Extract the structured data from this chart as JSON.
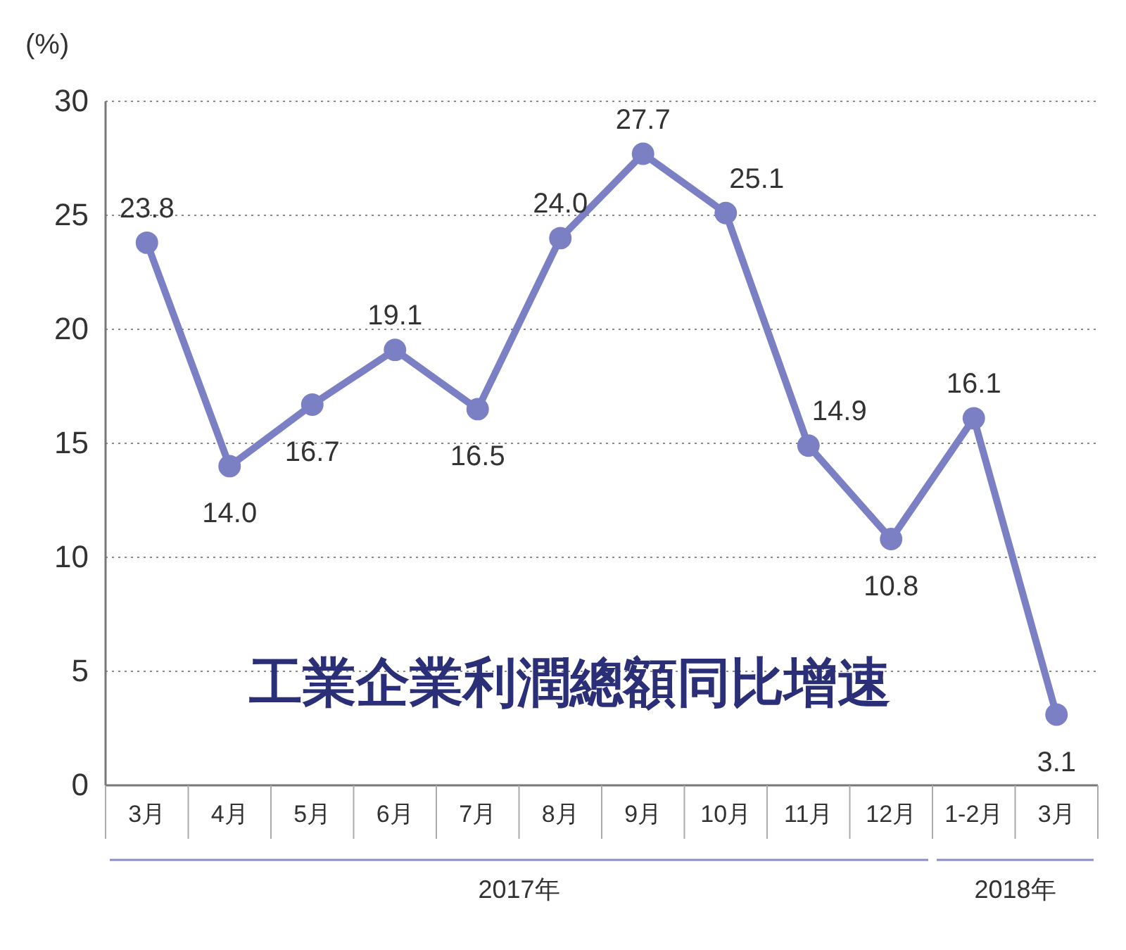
{
  "chart_data": {
    "type": "line",
    "title": "工業企業利潤總額同比增速",
    "ylabel": "(%)",
    "categories": [
      "3月",
      "4月",
      "5月",
      "6月",
      "7月",
      "8月",
      "9月",
      "10月",
      "11月",
      "12月",
      "1-2月",
      "3月"
    ],
    "series": [
      {
        "color": "#7b7fc4",
        "values": [
          23.8,
          14.0,
          16.7,
          19.1,
          16.5,
          24.0,
          27.7,
          25.1,
          14.9,
          10.8,
          16.1,
          3.1
        ],
        "value_labels": [
          "23.8",
          "14.0",
          "16.7",
          "19.1",
          "16.5",
          "24.0",
          "27.7",
          "25.1",
          "14.9",
          "10.8",
          "16.1",
          "3.1"
        ]
      }
    ],
    "ylim": [
      0,
      30
    ],
    "yticks": [
      0,
      5,
      10,
      15,
      20,
      25,
      30
    ],
    "grid": "y",
    "marker": "circle",
    "line_style": "solid",
    "annotations": [
      "2017年",
      "2018年"
    ]
  }
}
